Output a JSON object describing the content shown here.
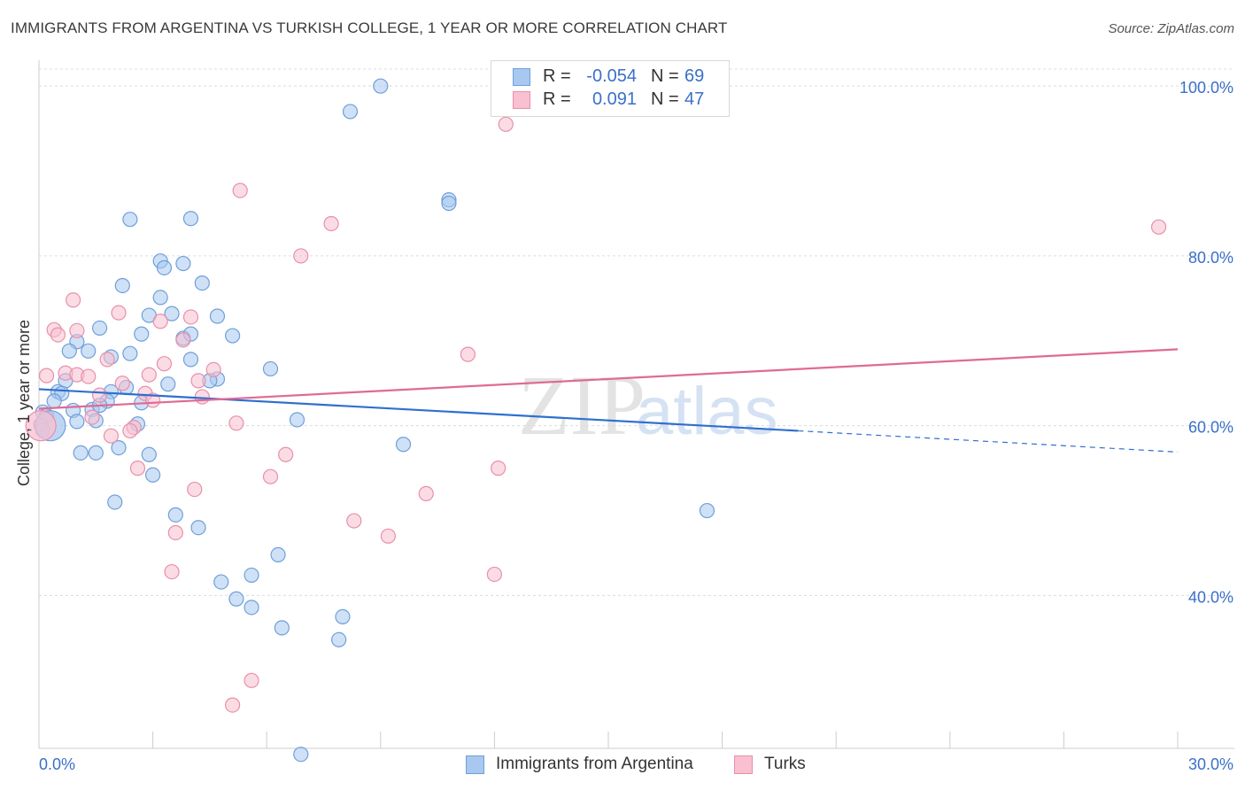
{
  "header": {
    "title": "IMMIGRANTS FROM ARGENTINA VS TURKISH COLLEGE, 1 YEAR OR MORE CORRELATION CHART",
    "source": "Source: ZipAtlas.com"
  },
  "watermark": {
    "zip": "ZIP",
    "atlas": "atlas"
  },
  "legend": {
    "series": [
      {
        "r_label": "R =",
        "r_value": "-0.054",
        "n_label": "N =",
        "n_value": "69",
        "color": "#a8c8f0",
        "border": "#6f9fd8"
      },
      {
        "r_label": "R =",
        "r_value": "0.091",
        "n_label": "N =",
        "n_value": "47",
        "color": "#f8c0d0",
        "border": "#e890a8"
      }
    ]
  },
  "bottom_legend": {
    "items": [
      {
        "label": "Immigrants from Argentina",
        "color": "#a8c8f0",
        "border": "#6f9fd8"
      },
      {
        "label": "Turks",
        "color": "#f8c0d0",
        "border": "#e890a8"
      }
    ]
  },
  "chart_data": {
    "type": "scatter",
    "title": "IMMIGRANTS FROM ARGENTINA VS TURKISH COLLEGE, 1 YEAR OR MORE CORRELATION CHART",
    "xlabel": "",
    "ylabel": "College, 1 year or more",
    "xlim": [
      0,
      30
    ],
    "ylim": [
      22,
      102
    ],
    "x_tick_labels": [
      "0.0%",
      "30.0%"
    ],
    "y_ticks": [
      40,
      60,
      80,
      100
    ],
    "y_tick_labels": [
      "40.0%",
      "60.0%",
      "80.0%",
      "100.0%"
    ],
    "grid": true,
    "legend_position": "top-center",
    "colors": {
      "blue_fill": "#a8c8f0",
      "blue_stroke": "#6f9fd8",
      "blue_line": "#2f6fd0",
      "pink_fill": "#f8c0d0",
      "pink_stroke": "#e890a8",
      "pink_line": "#e06a95",
      "tick_text": "#3b6fc9"
    },
    "series": [
      {
        "name": "Immigrants from Argentina",
        "trend": {
          "x0": 0,
          "y0": 64.3,
          "x1": 20.0,
          "y1": 59.4,
          "dash_x1": 30.0,
          "dash_y1": 56.9
        },
        "points": [
          [
            9.0,
            100.0
          ],
          [
            8.2,
            97.0
          ],
          [
            10.8,
            86.6
          ],
          [
            10.8,
            86.2
          ],
          [
            2.4,
            84.3
          ],
          [
            4.0,
            84.4
          ],
          [
            3.2,
            79.4
          ],
          [
            3.8,
            79.1
          ],
          [
            3.3,
            78.6
          ],
          [
            2.2,
            76.5
          ],
          [
            4.3,
            76.8
          ],
          [
            3.2,
            75.1
          ],
          [
            2.9,
            73.0
          ],
          [
            3.5,
            73.2
          ],
          [
            4.7,
            72.9
          ],
          [
            1.6,
            71.5
          ],
          [
            2.7,
            70.8
          ],
          [
            3.8,
            70.3
          ],
          [
            4.0,
            70.8
          ],
          [
            5.1,
            70.6
          ],
          [
            1.0,
            69.9
          ],
          [
            1.3,
            68.8
          ],
          [
            0.8,
            68.8
          ],
          [
            1.9,
            68.1
          ],
          [
            2.4,
            68.5
          ],
          [
            4.0,
            67.8
          ],
          [
            6.1,
            66.7
          ],
          [
            4.7,
            65.5
          ],
          [
            4.5,
            65.3
          ],
          [
            3.4,
            64.9
          ],
          [
            0.7,
            65.3
          ],
          [
            2.3,
            64.5
          ],
          [
            1.9,
            64.0
          ],
          [
            0.5,
            64.0
          ],
          [
            0.6,
            63.8
          ],
          [
            1.8,
            62.9
          ],
          [
            2.7,
            62.7
          ],
          [
            0.4,
            62.9
          ],
          [
            1.4,
            61.9
          ],
          [
            1.6,
            62.4
          ],
          [
            0.9,
            61.8
          ],
          [
            0.1,
            61.6
          ],
          [
            0.2,
            61.2
          ],
          [
            1.0,
            60.5
          ],
          [
            1.5,
            60.6
          ],
          [
            2.6,
            60.2
          ],
          [
            6.8,
            60.7
          ],
          [
            0.05,
            60.1
          ],
          [
            0.1,
            59.5
          ],
          [
            2.1,
            57.4
          ],
          [
            1.1,
            56.8
          ],
          [
            1.5,
            56.8
          ],
          [
            9.6,
            57.8
          ],
          [
            2.9,
            56.6
          ],
          [
            3.0,
            54.2
          ],
          [
            2.0,
            51.0
          ],
          [
            17.6,
            50.0
          ],
          [
            3.6,
            49.5
          ],
          [
            4.2,
            48.0
          ],
          [
            6.3,
            44.8
          ],
          [
            5.6,
            42.4
          ],
          [
            4.8,
            41.6
          ],
          [
            5.2,
            39.6
          ],
          [
            5.6,
            38.6
          ],
          [
            8.0,
            37.5
          ],
          [
            6.4,
            36.2
          ],
          [
            7.9,
            34.8
          ],
          [
            6.9,
            21.3
          ],
          [
            0.3,
            60.0
          ]
        ]
      },
      {
        "name": "Turks",
        "trend": {
          "x0": 0,
          "y0": 62.0,
          "x1": 30.0,
          "y1": 69.0
        },
        "points": [
          [
            12.3,
            95.5
          ],
          [
            5.3,
            87.7
          ],
          [
            7.7,
            83.8
          ],
          [
            29.5,
            83.4
          ],
          [
            6.9,
            80.0
          ],
          [
            0.9,
            74.8
          ],
          [
            2.1,
            73.3
          ],
          [
            3.2,
            72.3
          ],
          [
            4.0,
            72.8
          ],
          [
            0.4,
            71.3
          ],
          [
            1.0,
            71.2
          ],
          [
            0.5,
            70.7
          ],
          [
            3.8,
            70.1
          ],
          [
            11.3,
            68.4
          ],
          [
            1.8,
            67.8
          ],
          [
            3.3,
            67.3
          ],
          [
            4.6,
            66.6
          ],
          [
            0.7,
            66.2
          ],
          [
            1.0,
            66.0
          ],
          [
            1.3,
            65.8
          ],
          [
            2.9,
            66.0
          ],
          [
            0.2,
            65.9
          ],
          [
            4.2,
            65.3
          ],
          [
            2.2,
            65.0
          ],
          [
            2.8,
            63.8
          ],
          [
            4.3,
            63.4
          ],
          [
            1.6,
            63.6
          ],
          [
            3.0,
            63.0
          ],
          [
            1.4,
            61.0
          ],
          [
            5.2,
            60.3
          ],
          [
            2.5,
            59.8
          ],
          [
            2.4,
            59.4
          ],
          [
            1.9,
            58.8
          ],
          [
            6.5,
            56.6
          ],
          [
            2.6,
            55.0
          ],
          [
            12.1,
            55.0
          ],
          [
            6.1,
            54.0
          ],
          [
            4.1,
            52.5
          ],
          [
            10.2,
            52.0
          ],
          [
            8.3,
            48.8
          ],
          [
            3.6,
            47.4
          ],
          [
            9.2,
            47.0
          ],
          [
            3.5,
            42.8
          ],
          [
            12.0,
            42.5
          ],
          [
            5.6,
            30.0
          ],
          [
            5.1,
            27.1
          ],
          [
            0.05,
            60.0
          ]
        ]
      }
    ]
  }
}
